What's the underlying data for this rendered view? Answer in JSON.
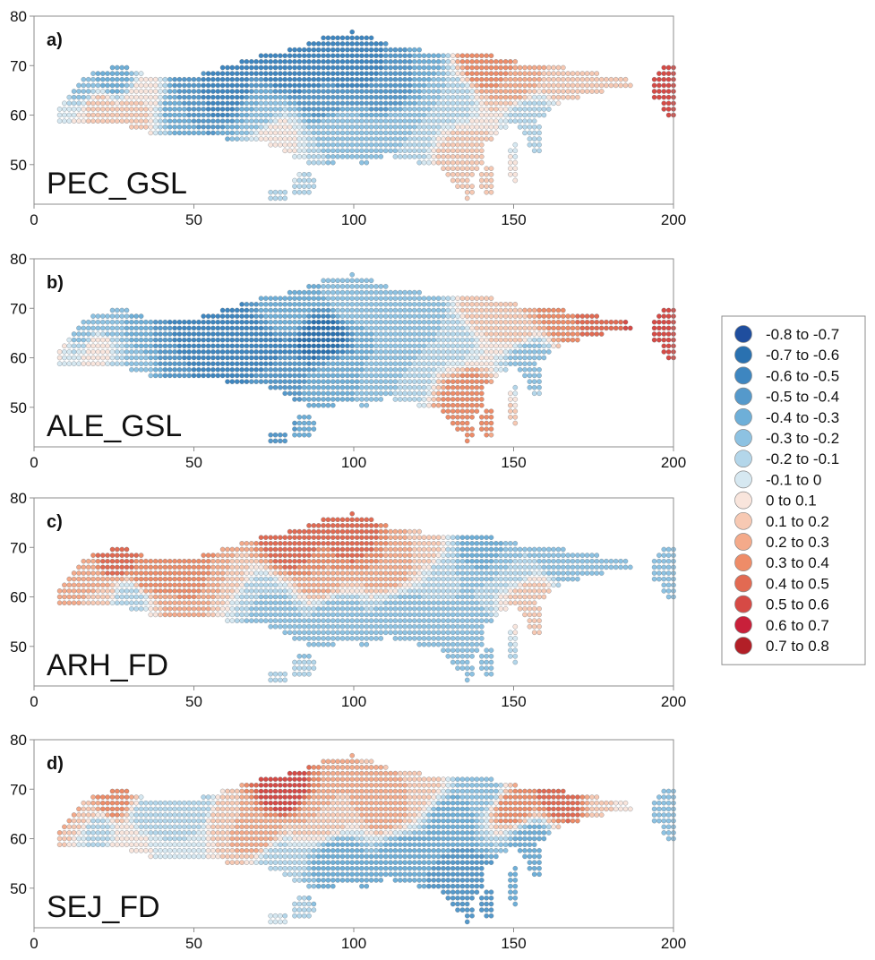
{
  "chart_data": [
    {
      "type": "scatter",
      "panel_letter": "a)",
      "panel_name": "PEC_GSL",
      "xlim": [
        0,
        200
      ],
      "ylim": [
        42,
        80
      ],
      "xticks": [
        0,
        50,
        100,
        150,
        200
      ],
      "yticks": [
        50,
        60,
        70,
        80
      ],
      "regions": [
        {
          "lon": 8,
          "lat": 66,
          "value": 0.1
        },
        {
          "lon": 15,
          "lat": 65,
          "value": -0.3
        },
        {
          "lon": 20,
          "lat": 62,
          "value": 0.2
        },
        {
          "lon": 25,
          "lat": 67,
          "value": -0.4
        },
        {
          "lon": 30,
          "lat": 60,
          "value": 0.2
        },
        {
          "lon": 35,
          "lat": 64,
          "value": 0.1
        },
        {
          "lon": 45,
          "lat": 62,
          "value": -0.4
        },
        {
          "lon": 50,
          "lat": 66,
          "value": -0.5
        },
        {
          "lon": 60,
          "lat": 64,
          "value": -0.6
        },
        {
          "lon": 70,
          "lat": 60,
          "value": -0.3
        },
        {
          "lon": 75,
          "lat": 56,
          "value": 0.1
        },
        {
          "lon": 80,
          "lat": 70,
          "value": -0.6
        },
        {
          "lon": 90,
          "lat": 64,
          "value": -0.5
        },
        {
          "lon": 95,
          "lat": 56,
          "value": -0.2
        },
        {
          "lon": 100,
          "lat": 72,
          "value": -0.6
        },
        {
          "lon": 110,
          "lat": 66,
          "value": -0.5
        },
        {
          "lon": 115,
          "lat": 56,
          "value": -0.2
        },
        {
          "lon": 120,
          "lat": 70,
          "value": -0.4
        },
        {
          "lon": 130,
          "lat": 64,
          "value": -0.2
        },
        {
          "lon": 135,
          "lat": 52,
          "value": 0.2
        },
        {
          "lon": 140,
          "lat": 70,
          "value": 0.4
        },
        {
          "lon": 150,
          "lat": 66,
          "value": 0.3
        },
        {
          "lon": 155,
          "lat": 60,
          "value": -0.2
        },
        {
          "lon": 165,
          "lat": 68,
          "value": 0.2
        },
        {
          "lon": 180,
          "lat": 68,
          "value": 0.1
        },
        {
          "lon": 198,
          "lat": 66,
          "value": 0.6
        }
      ]
    },
    {
      "type": "scatter",
      "panel_letter": "b)",
      "panel_name": "ALE_GSL",
      "xlim": [
        0,
        200
      ],
      "ylim": [
        42,
        80
      ],
      "xticks": [
        0,
        50,
        100,
        150,
        200
      ],
      "yticks": [
        50,
        60,
        70,
        80
      ],
      "regions": [
        {
          "lon": 8,
          "lat": 66,
          "value": 0.2
        },
        {
          "lon": 15,
          "lat": 65,
          "value": -0.3
        },
        {
          "lon": 20,
          "lat": 62,
          "value": 0.1
        },
        {
          "lon": 25,
          "lat": 67,
          "value": -0.3
        },
        {
          "lon": 30,
          "lat": 60,
          "value": -0.2
        },
        {
          "lon": 35,
          "lat": 64,
          "value": -0.4
        },
        {
          "lon": 45,
          "lat": 62,
          "value": -0.5
        },
        {
          "lon": 50,
          "lat": 66,
          "value": -0.6
        },
        {
          "lon": 60,
          "lat": 64,
          "value": -0.6
        },
        {
          "lon": 70,
          "lat": 60,
          "value": -0.6
        },
        {
          "lon": 75,
          "lat": 56,
          "value": -0.4
        },
        {
          "lon": 80,
          "lat": 70,
          "value": -0.3
        },
        {
          "lon": 90,
          "lat": 64,
          "value": -0.7
        },
        {
          "lon": 95,
          "lat": 56,
          "value": -0.3
        },
        {
          "lon": 100,
          "lat": 72,
          "value": -0.2
        },
        {
          "lon": 110,
          "lat": 66,
          "value": -0.3
        },
        {
          "lon": 115,
          "lat": 56,
          "value": -0.2
        },
        {
          "lon": 120,
          "lat": 70,
          "value": -0.3
        },
        {
          "lon": 130,
          "lat": 64,
          "value": -0.2
        },
        {
          "lon": 135,
          "lat": 52,
          "value": 0.4
        },
        {
          "lon": 140,
          "lat": 70,
          "value": 0.2
        },
        {
          "lon": 150,
          "lat": 66,
          "value": 0.2
        },
        {
          "lon": 155,
          "lat": 60,
          "value": -0.3
        },
        {
          "lon": 165,
          "lat": 68,
          "value": 0.4
        },
        {
          "lon": 180,
          "lat": 68,
          "value": 0.5
        },
        {
          "lon": 198,
          "lat": 66,
          "value": 0.6
        }
      ]
    },
    {
      "type": "scatter",
      "panel_letter": "c)",
      "panel_name": "ARH_FD",
      "xlim": [
        0,
        200
      ],
      "ylim": [
        42,
        80
      ],
      "xticks": [
        0,
        50,
        100,
        150,
        200
      ],
      "yticks": [
        50,
        60,
        70,
        80
      ],
      "regions": [
        {
          "lon": 8,
          "lat": 66,
          "value": 0.3
        },
        {
          "lon": 15,
          "lat": 65,
          "value": 0.2
        },
        {
          "lon": 20,
          "lat": 62,
          "value": 0.2
        },
        {
          "lon": 25,
          "lat": 67,
          "value": 0.5
        },
        {
          "lon": 30,
          "lat": 60,
          "value": -0.2
        },
        {
          "lon": 35,
          "lat": 64,
          "value": 0.4
        },
        {
          "lon": 45,
          "lat": 62,
          "value": 0.3
        },
        {
          "lon": 50,
          "lat": 66,
          "value": 0.4
        },
        {
          "lon": 60,
          "lat": 64,
          "value": 0.2
        },
        {
          "lon": 70,
          "lat": 60,
          "value": -0.2
        },
        {
          "lon": 75,
          "lat": 56,
          "value": -0.3
        },
        {
          "lon": 80,
          "lat": 70,
          "value": 0.5
        },
        {
          "lon": 90,
          "lat": 64,
          "value": 0.3
        },
        {
          "lon": 95,
          "lat": 56,
          "value": -0.3
        },
        {
          "lon": 100,
          "lat": 72,
          "value": 0.5
        },
        {
          "lon": 110,
          "lat": 66,
          "value": 0.3
        },
        {
          "lon": 115,
          "lat": 56,
          "value": -0.3
        },
        {
          "lon": 120,
          "lat": 70,
          "value": 0.2
        },
        {
          "lon": 130,
          "lat": 64,
          "value": -0.2
        },
        {
          "lon": 135,
          "lat": 52,
          "value": -0.3
        },
        {
          "lon": 140,
          "lat": 70,
          "value": -0.4
        },
        {
          "lon": 150,
          "lat": 66,
          "value": -0.2
        },
        {
          "lon": 155,
          "lat": 60,
          "value": 0.2
        },
        {
          "lon": 165,
          "lat": 68,
          "value": -0.3
        },
        {
          "lon": 180,
          "lat": 68,
          "value": -0.2
        },
        {
          "lon": 198,
          "lat": 66,
          "value": -0.3
        }
      ]
    },
    {
      "type": "scatter",
      "panel_letter": "d)",
      "panel_name": "SEJ_FD",
      "xlim": [
        0,
        200
      ],
      "ylim": [
        42,
        80
      ],
      "xticks": [
        0,
        50,
        100,
        150,
        200
      ],
      "yticks": [
        50,
        60,
        70,
        80
      ],
      "regions": [
        {
          "lon": 8,
          "lat": 66,
          "value": 0.3
        },
        {
          "lon": 15,
          "lat": 65,
          "value": 0.2
        },
        {
          "lon": 20,
          "lat": 62,
          "value": -0.2
        },
        {
          "lon": 25,
          "lat": 67,
          "value": 0.4
        },
        {
          "lon": 30,
          "lat": 60,
          "value": 0.1
        },
        {
          "lon": 35,
          "lat": 64,
          "value": -0.2
        },
        {
          "lon": 45,
          "lat": 62,
          "value": -0.1
        },
        {
          "lon": 50,
          "lat": 66,
          "value": -0.2
        },
        {
          "lon": 60,
          "lat": 64,
          "value": 0.2
        },
        {
          "lon": 70,
          "lat": 60,
          "value": 0.3
        },
        {
          "lon": 75,
          "lat": 56,
          "value": -0.2
        },
        {
          "lon": 78,
          "lat": 70,
          "value": 0.6
        },
        {
          "lon": 90,
          "lat": 64,
          "value": 0.2
        },
        {
          "lon": 95,
          "lat": 56,
          "value": -0.4
        },
        {
          "lon": 100,
          "lat": 72,
          "value": 0.2
        },
        {
          "lon": 110,
          "lat": 66,
          "value": 0.3
        },
        {
          "lon": 115,
          "lat": 56,
          "value": -0.4
        },
        {
          "lon": 120,
          "lat": 70,
          "value": 0.2
        },
        {
          "lon": 130,
          "lat": 64,
          "value": -0.4
        },
        {
          "lon": 135,
          "lat": 52,
          "value": -0.5
        },
        {
          "lon": 140,
          "lat": 70,
          "value": -0.3
        },
        {
          "lon": 150,
          "lat": 66,
          "value": 0.4
        },
        {
          "lon": 155,
          "lat": 60,
          "value": -0.4
        },
        {
          "lon": 165,
          "lat": 68,
          "value": 0.5
        },
        {
          "lon": 180,
          "lat": 68,
          "value": 0.1
        },
        {
          "lon": 198,
          "lat": 66,
          "value": -0.3
        }
      ]
    }
  ],
  "legend": {
    "items": [
      {
        "from": "-0.8",
        "to": "-0.7",
        "color": "#1f4e9e"
      },
      {
        "from": "-0.7",
        "to": "-0.6",
        "color": "#2a71b0"
      },
      {
        "from": "-0.6",
        "to": "-0.5",
        "color": "#3e86c0"
      },
      {
        "from": "-0.5",
        "to": "-0.4",
        "color": "#5599cb"
      },
      {
        "from": "-0.4",
        "to": "-0.3",
        "color": "#6eafd8"
      },
      {
        "from": "-0.3",
        "to": "-0.2",
        "color": "#8dc2e2"
      },
      {
        "from": "-0.2",
        "to": "-0.1",
        "color": "#b3d6ea"
      },
      {
        "from": "-0.1",
        "to": "0",
        "color": "#d6e8f1"
      },
      {
        "from": "0",
        "to": "0.1",
        "color": "#f9e5dc"
      },
      {
        "from": "0.1",
        "to": "0.2",
        "color": "#f7c9b3"
      },
      {
        "from": "0.2",
        "to": "0.3",
        "color": "#f4aa8a"
      },
      {
        "from": "0.3",
        "to": "0.4",
        "color": "#ee8c68"
      },
      {
        "from": "0.4",
        "to": "0.5",
        "color": "#e26a52"
      },
      {
        "from": "0.5",
        "to": "0.6",
        "color": "#d64a45"
      },
      {
        "from": "0.6",
        "to": "0.7",
        "color": "#c8203a"
      },
      {
        "from": "0.7",
        "to": "0.8",
        "color": "#b21f27"
      }
    ],
    "separator": "to"
  }
}
